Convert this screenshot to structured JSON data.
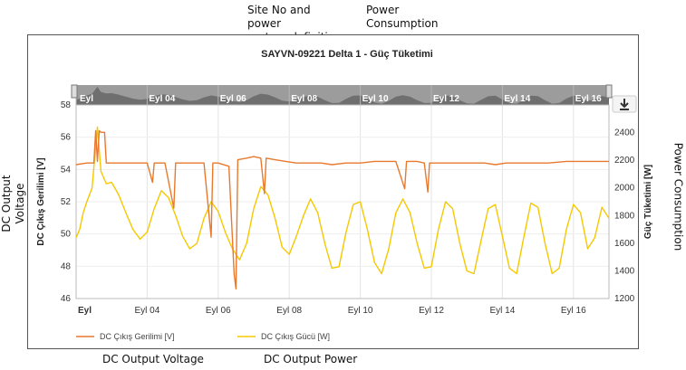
{
  "annotations": {
    "site_definition": "Site No and power\nsystem definition",
    "power_consumption_top": "Power\nConsumption",
    "dc_output_voltage_left": "DC Output Voltage",
    "power_consumption_right": "Power Consumption",
    "dc_output_voltage_bottom": "DC Output Voltage",
    "dc_output_power_bottom": "DC Output Power"
  },
  "chart_data": {
    "type": "line",
    "title": "SAYVN-09221 Delta 1 - Güç Tüketimi",
    "ylabel_left": "DC Çıkış Gerilimi [V]",
    "ylabel_right": "Güç Tüketimi [W]",
    "y_left_lim": [
      46,
      58
    ],
    "y_left_ticks": [
      46,
      48,
      50,
      52,
      54,
      56,
      58
    ],
    "y_right_lim": [
      1200,
      2600
    ],
    "y_right_ticks": [
      1200,
      1400,
      1600,
      1800,
      2000,
      2200,
      2400
    ],
    "x_range_days": [
      2,
      17
    ],
    "x_ticks": [
      {
        "day": 2,
        "label": "Eyl"
      },
      {
        "day": 4,
        "label": "Eyl 04"
      },
      {
        "day": 6,
        "label": "Eyl 06"
      },
      {
        "day": 8,
        "label": "Eyl 08"
      },
      {
        "day": 10,
        "label": "Eyl 10"
      },
      {
        "day": 12,
        "label": "Eyl 12"
      },
      {
        "day": 14,
        "label": "Eyl 14"
      },
      {
        "day": 16,
        "label": "Eyl 16"
      }
    ],
    "grid": true,
    "series": [
      {
        "name": "DC Çıkış Gerilimi [V]",
        "axis": "left",
        "color": "#e8792e",
        "points": [
          [
            2.0,
            54.3
          ],
          [
            2.3,
            54.4
          ],
          [
            2.5,
            54.4
          ],
          [
            2.55,
            56.4
          ],
          [
            2.6,
            54.5
          ],
          [
            2.65,
            56.4
          ],
          [
            2.7,
            56.3
          ],
          [
            2.8,
            56.3
          ],
          [
            2.85,
            54.4
          ],
          [
            3.5,
            54.4
          ],
          [
            4.0,
            54.4
          ],
          [
            4.15,
            53.2
          ],
          [
            4.2,
            54.4
          ],
          [
            4.5,
            54.4
          ],
          [
            4.75,
            51.6
          ],
          [
            4.8,
            54.4
          ],
          [
            5.0,
            54.4
          ],
          [
            5.3,
            54.4
          ],
          [
            5.6,
            54.4
          ],
          [
            5.8,
            49.8
          ],
          [
            5.85,
            54.4
          ],
          [
            6.0,
            54.4
          ],
          [
            6.3,
            54.2
          ],
          [
            6.45,
            47.5
          ],
          [
            6.5,
            46.6
          ],
          [
            6.55,
            54.6
          ],
          [
            6.8,
            54.7
          ],
          [
            7.0,
            54.8
          ],
          [
            7.2,
            54.7
          ],
          [
            7.3,
            52.5
          ],
          [
            7.35,
            54.7
          ],
          [
            7.6,
            54.6
          ],
          [
            7.9,
            54.5
          ],
          [
            8.2,
            54.4
          ],
          [
            8.5,
            54.4
          ],
          [
            8.9,
            54.4
          ],
          [
            9.2,
            54.3
          ],
          [
            9.6,
            54.4
          ],
          [
            10.0,
            54.4
          ],
          [
            10.4,
            54.5
          ],
          [
            10.8,
            54.5
          ],
          [
            11.0,
            54.5
          ],
          [
            11.25,
            52.8
          ],
          [
            11.3,
            54.5
          ],
          [
            11.6,
            54.5
          ],
          [
            11.8,
            54.4
          ],
          [
            11.9,
            52.6
          ],
          [
            11.95,
            54.4
          ],
          [
            12.3,
            54.4
          ],
          [
            12.6,
            54.4
          ],
          [
            12.9,
            54.4
          ],
          [
            13.2,
            54.4
          ],
          [
            13.5,
            54.4
          ],
          [
            13.8,
            54.3
          ],
          [
            14.1,
            54.4
          ],
          [
            14.5,
            54.4
          ],
          [
            14.9,
            54.4
          ],
          [
            15.3,
            54.4
          ],
          [
            15.8,
            54.5
          ],
          [
            16.3,
            54.5
          ],
          [
            17.0,
            54.5
          ]
        ]
      },
      {
        "name": "DC Çıkış Gücü [W]",
        "axis": "right",
        "color": "#f5c800",
        "points": [
          [
            2.0,
            1640
          ],
          [
            2.1,
            1700
          ],
          [
            2.2,
            1820
          ],
          [
            2.3,
            1900
          ],
          [
            2.45,
            2000
          ],
          [
            2.6,
            2440
          ],
          [
            2.7,
            2120
          ],
          [
            2.85,
            2030
          ],
          [
            3.0,
            2040
          ],
          [
            3.2,
            1950
          ],
          [
            3.4,
            1820
          ],
          [
            3.6,
            1700
          ],
          [
            3.8,
            1630
          ],
          [
            4.0,
            1680
          ],
          [
            4.2,
            1850
          ],
          [
            4.4,
            1980
          ],
          [
            4.6,
            1930
          ],
          [
            4.8,
            1800
          ],
          [
            5.0,
            1650
          ],
          [
            5.2,
            1560
          ],
          [
            5.4,
            1600
          ],
          [
            5.6,
            1780
          ],
          [
            5.8,
            1900
          ],
          [
            6.0,
            1830
          ],
          [
            6.2,
            1680
          ],
          [
            6.4,
            1560
          ],
          [
            6.6,
            1480
          ],
          [
            6.8,
            1600
          ],
          [
            7.0,
            1850
          ],
          [
            7.2,
            2010
          ],
          [
            7.4,
            1950
          ],
          [
            7.6,
            1780
          ],
          [
            7.8,
            1570
          ],
          [
            8.0,
            1520
          ],
          [
            8.2,
            1650
          ],
          [
            8.4,
            1800
          ],
          [
            8.6,
            1920
          ],
          [
            8.8,
            1820
          ],
          [
            9.0,
            1600
          ],
          [
            9.2,
            1420
          ],
          [
            9.4,
            1430
          ],
          [
            9.6,
            1680
          ],
          [
            9.8,
            1880
          ],
          [
            10.0,
            1900
          ],
          [
            10.2,
            1700
          ],
          [
            10.4,
            1460
          ],
          [
            10.6,
            1380
          ],
          [
            10.8,
            1560
          ],
          [
            11.0,
            1820
          ],
          [
            11.2,
            1920
          ],
          [
            11.4,
            1820
          ],
          [
            11.6,
            1600
          ],
          [
            11.8,
            1420
          ],
          [
            12.0,
            1430
          ],
          [
            12.2,
            1700
          ],
          [
            12.4,
            1900
          ],
          [
            12.6,
            1850
          ],
          [
            12.8,
            1600
          ],
          [
            13.0,
            1400
          ],
          [
            13.2,
            1380
          ],
          [
            13.4,
            1620
          ],
          [
            13.6,
            1850
          ],
          [
            13.8,
            1880
          ],
          [
            14.0,
            1650
          ],
          [
            14.2,
            1420
          ],
          [
            14.4,
            1380
          ],
          [
            14.6,
            1640
          ],
          [
            14.8,
            1890
          ],
          [
            15.0,
            1860
          ],
          [
            15.2,
            1600
          ],
          [
            15.4,
            1380
          ],
          [
            15.6,
            1420
          ],
          [
            15.8,
            1700
          ],
          [
            16.0,
            1880
          ],
          [
            16.2,
            1820
          ],
          [
            16.4,
            1560
          ],
          [
            16.6,
            1640
          ],
          [
            16.8,
            1860
          ],
          [
            17.0,
            1780
          ]
        ]
      }
    ],
    "legend": {
      "position": "bottom-left"
    }
  }
}
